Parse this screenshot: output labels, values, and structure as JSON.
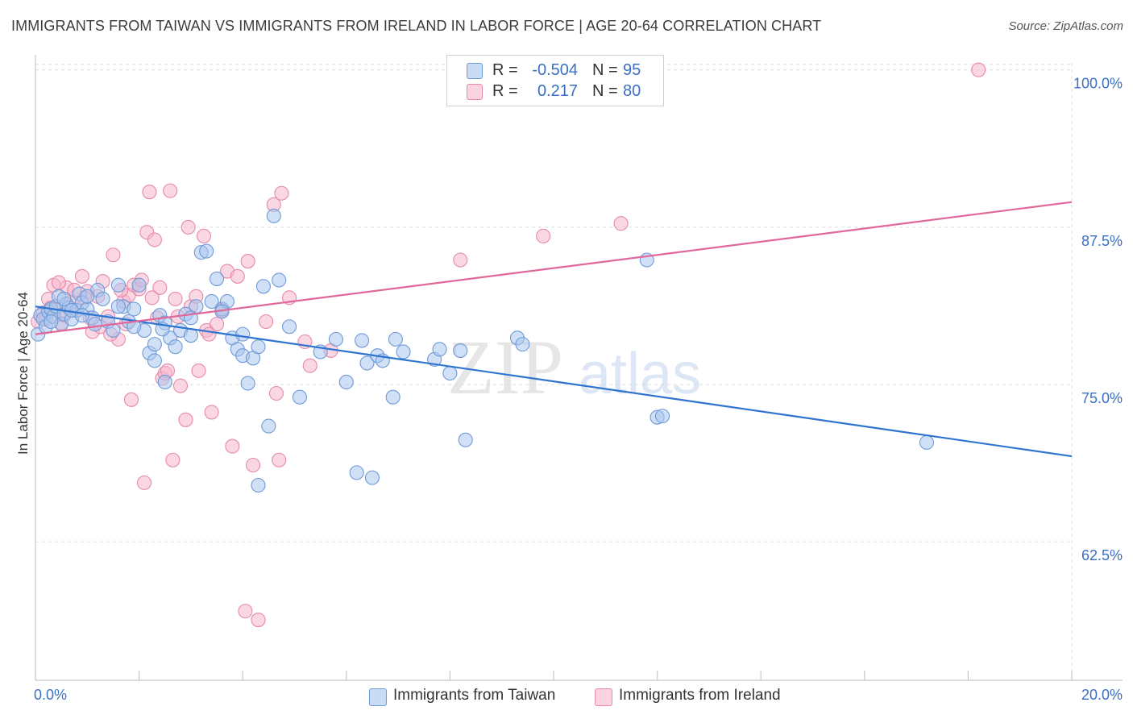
{
  "title": "IMMIGRANTS FROM TAIWAN VS IMMIGRANTS FROM IRELAND IN LABOR FORCE | AGE 20-64 CORRELATION CHART",
  "source": "Source: ZipAtlas.com",
  "watermark": "ZIPatlas",
  "legend": {
    "rows": [
      {
        "r_label": "R =",
        "r_value": "-0.504",
        "n_label": "N =",
        "n_value": "95"
      },
      {
        "r_label": "R =",
        "r_value": "0.217",
        "n_label": "N =",
        "n_value": "80"
      }
    ]
  },
  "bottom_legend": [
    "Immigrants from Taiwan",
    "Immigrants from Ireland"
  ],
  "x_axis": {
    "min_label": "0.0%",
    "max_label": "20.0%"
  },
  "colors": {
    "taiwan_fill": "#a9c7ef",
    "taiwan_stroke": "#6f9ad6",
    "taiwan_line": "#2f74d0",
    "ireland_fill": "#f6b7cc",
    "ireland_stroke": "#e58aab",
    "ireland_line": "#e0689a",
    "axis_text": "#3b6fc4",
    "grid": "#dedede"
  },
  "chart_data": {
    "type": "scatter",
    "title": "IMMIGRANTS FROM TAIWAN VS IMMIGRANTS FROM IRELAND IN LABOR FORCE | AGE 20-64 CORRELATION CHART",
    "xlabel": "",
    "ylabel": "In Labor Force | Age 20-64",
    "xlim": [
      0,
      20
    ],
    "ylim": [
      51.5,
      101.2
    ],
    "y_ticks": [
      100.0,
      87.5,
      75.0,
      62.5
    ],
    "y_tick_labels": [
      "100.0%",
      "87.5%",
      "75.0%",
      "62.5%"
    ],
    "x_tick_labels": [
      "0.0%",
      "20.0%"
    ],
    "grid": true,
    "series": [
      {
        "name": "Immigrants from Taiwan",
        "r": -0.504,
        "n": 95,
        "trend": {
          "x": [
            0,
            20
          ],
          "y": [
            81.2,
            69.3
          ]
        },
        "points": [
          [
            0.05,
            79.0
          ],
          [
            0.1,
            80.5
          ],
          [
            0.15,
            80.2
          ],
          [
            0.2,
            79.6
          ],
          [
            0.25,
            80.8
          ],
          [
            0.3,
            81.0
          ],
          [
            0.35,
            80.4
          ],
          [
            0.4,
            81.2
          ],
          [
            0.45,
            82.0
          ],
          [
            0.5,
            79.8
          ],
          [
            0.55,
            80.6
          ],
          [
            0.6,
            81.4
          ],
          [
            0.65,
            81.1
          ],
          [
            0.7,
            80.2
          ],
          [
            0.8,
            80.9
          ],
          [
            0.85,
            82.2
          ],
          [
            0.9,
            81.5
          ],
          [
            1.0,
            81.0
          ],
          [
            1.1,
            80.3
          ],
          [
            1.2,
            82.5
          ],
          [
            1.3,
            81.8
          ],
          [
            1.4,
            80.0
          ],
          [
            1.5,
            79.3
          ],
          [
            1.6,
            82.9
          ],
          [
            1.7,
            81.2
          ],
          [
            1.8,
            80.0
          ],
          [
            1.9,
            81.0
          ],
          [
            2.0,
            82.9
          ],
          [
            2.1,
            79.3
          ],
          [
            2.2,
            77.5
          ],
          [
            2.3,
            78.2
          ],
          [
            2.4,
            80.5
          ],
          [
            2.5,
            79.9
          ],
          [
            2.6,
            78.7
          ],
          [
            2.7,
            78.0
          ],
          [
            2.8,
            79.3
          ],
          [
            3.0,
            78.9
          ],
          [
            3.1,
            81.2
          ],
          [
            3.2,
            85.5
          ],
          [
            3.3,
            85.6
          ],
          [
            3.4,
            81.6
          ],
          [
            3.5,
            83.4
          ],
          [
            3.6,
            81.0
          ],
          [
            3.7,
            81.6
          ],
          [
            3.8,
            78.7
          ],
          [
            3.9,
            77.8
          ],
          [
            4.0,
            77.3
          ],
          [
            4.1,
            75.1
          ],
          [
            4.2,
            77.1
          ],
          [
            4.3,
            67.0
          ],
          [
            4.4,
            82.8
          ],
          [
            4.5,
            71.7
          ],
          [
            4.6,
            88.4
          ],
          [
            4.7,
            83.3
          ],
          [
            4.9,
            79.6
          ],
          [
            5.1,
            74.0
          ],
          [
            5.5,
            77.6
          ],
          [
            5.8,
            78.6
          ],
          [
            6.0,
            75.2
          ],
          [
            6.2,
            68.0
          ],
          [
            6.3,
            78.5
          ],
          [
            6.4,
            76.7
          ],
          [
            6.5,
            67.6
          ],
          [
            6.6,
            77.3
          ],
          [
            6.7,
            76.9
          ],
          [
            6.9,
            74.0
          ],
          [
            6.95,
            78.6
          ],
          [
            7.1,
            77.6
          ],
          [
            7.7,
            77.0
          ],
          [
            7.8,
            77.8
          ],
          [
            8.0,
            75.9
          ],
          [
            8.2,
            77.7
          ],
          [
            8.3,
            70.6
          ],
          [
            9.3,
            78.7
          ],
          [
            9.4,
            78.2
          ],
          [
            11.8,
            84.9
          ],
          [
            12.0,
            72.4
          ],
          [
            12.1,
            72.5
          ],
          [
            17.2,
            70.4
          ],
          [
            1.0,
            82.0
          ],
          [
            0.3,
            80.0
          ],
          [
            2.5,
            75.2
          ],
          [
            3.6,
            80.8
          ],
          [
            1.9,
            79.6
          ],
          [
            2.9,
            80.6
          ],
          [
            0.7,
            80.9
          ],
          [
            1.6,
            81.2
          ],
          [
            2.3,
            76.9
          ],
          [
            4.3,
            78.0
          ],
          [
            0.55,
            81.8
          ],
          [
            1.15,
            79.8
          ],
          [
            2.45,
            79.4
          ],
          [
            3.0,
            80.3
          ],
          [
            4.0,
            79.0
          ],
          [
            0.9,
            80.5
          ]
        ]
      },
      {
        "name": "Immigrants from Ireland",
        "r": 0.217,
        "n": 80,
        "trend": {
          "x": [
            0,
            20
          ],
          "y": [
            79.0,
            89.5
          ]
        },
        "points": [
          [
            0.05,
            80.0
          ],
          [
            0.15,
            80.7
          ],
          [
            0.25,
            81.8
          ],
          [
            0.3,
            81.1
          ],
          [
            0.35,
            82.9
          ],
          [
            0.4,
            81.0
          ],
          [
            0.5,
            79.9
          ],
          [
            0.6,
            82.7
          ],
          [
            0.7,
            81.6
          ],
          [
            0.8,
            80.9
          ],
          [
            0.9,
            83.6
          ],
          [
            1.0,
            82.4
          ],
          [
            1.05,
            80.3
          ],
          [
            1.1,
            79.2
          ],
          [
            1.2,
            82.0
          ],
          [
            1.3,
            83.2
          ],
          [
            1.4,
            80.4
          ],
          [
            1.5,
            85.3
          ],
          [
            1.6,
            78.6
          ],
          [
            1.7,
            81.6
          ],
          [
            1.8,
            82.1
          ],
          [
            1.85,
            73.8
          ],
          [
            1.9,
            82.9
          ],
          [
            2.0,
            82.6
          ],
          [
            2.1,
            67.2
          ],
          [
            2.15,
            87.1
          ],
          [
            2.2,
            90.3
          ],
          [
            2.3,
            86.5
          ],
          [
            2.4,
            82.7
          ],
          [
            2.45,
            75.5
          ],
          [
            2.5,
            75.9
          ],
          [
            2.55,
            76.1
          ],
          [
            2.6,
            90.4
          ],
          [
            2.65,
            69.0
          ],
          [
            2.7,
            81.8
          ],
          [
            2.75,
            80.4
          ],
          [
            2.8,
            74.9
          ],
          [
            2.9,
            72.2
          ],
          [
            2.95,
            87.5
          ],
          [
            3.0,
            81.2
          ],
          [
            3.1,
            82.0
          ],
          [
            3.15,
            76.1
          ],
          [
            3.25,
            86.8
          ],
          [
            3.3,
            79.3
          ],
          [
            3.4,
            72.8
          ],
          [
            3.5,
            79.8
          ],
          [
            3.6,
            80.9
          ],
          [
            3.7,
            84.0
          ],
          [
            3.8,
            70.1
          ],
          [
            3.9,
            83.6
          ],
          [
            4.05,
            57.0
          ],
          [
            4.1,
            84.8
          ],
          [
            4.2,
            68.6
          ],
          [
            4.3,
            56.3
          ],
          [
            4.45,
            80.0
          ],
          [
            4.6,
            89.3
          ],
          [
            4.65,
            74.3
          ],
          [
            4.7,
            69.0
          ],
          [
            4.75,
            90.2
          ],
          [
            4.9,
            81.9
          ],
          [
            5.2,
            78.4
          ],
          [
            5.3,
            76.5
          ],
          [
            5.7,
            77.7
          ],
          [
            8.2,
            84.9
          ],
          [
            9.8,
            86.8
          ],
          [
            11.3,
            87.8
          ],
          [
            18.2,
            100.0
          ],
          [
            0.2,
            80.2
          ],
          [
            0.45,
            83.1
          ],
          [
            0.75,
            82.5
          ],
          [
            1.25,
            79.6
          ],
          [
            1.65,
            82.5
          ],
          [
            2.05,
            83.3
          ],
          [
            0.55,
            80.5
          ],
          [
            0.95,
            81.9
          ],
          [
            1.45,
            79.0
          ],
          [
            1.75,
            79.8
          ],
          [
            2.35,
            80.3
          ],
          [
            3.35,
            79.0
          ],
          [
            2.25,
            81.9
          ]
        ]
      }
    ]
  }
}
